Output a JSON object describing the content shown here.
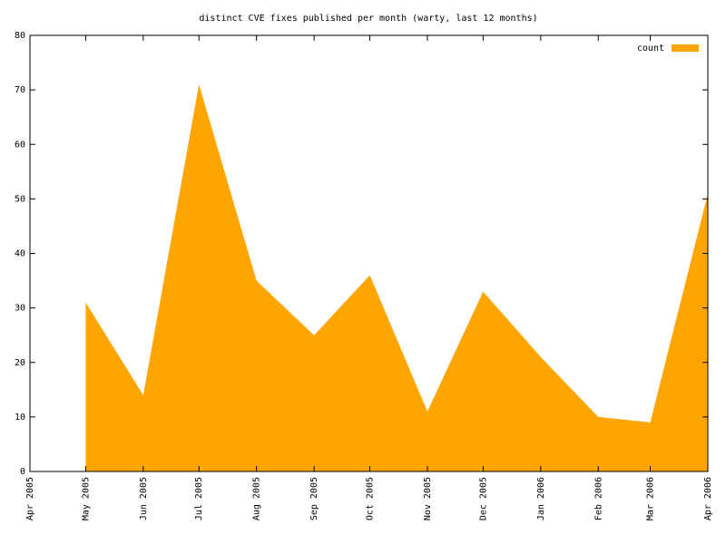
{
  "chart_data": {
    "type": "area",
    "title": "distinct CVE fixes published per month (warty, last 12 months)",
    "x": [
      "2005-05-01",
      "2005-06-01",
      "2005-07-01",
      "2005-08-01",
      "2005-09-01",
      "2005-10-01",
      "2005-11-01",
      "2005-12-01",
      "2006-01-01",
      "2006-02-01",
      "2006-03-01",
      "2006-04-01"
    ],
    "series": [
      {
        "name": "count",
        "color": "#ffa500",
        "values": [
          31,
          14,
          71,
          35,
          25,
          36,
          11,
          33,
          21,
          10,
          9,
          51
        ]
      }
    ],
    "xlim": [
      "2005-04-01",
      "2006-04-01"
    ],
    "xticks": [
      {
        "value": "2005-04-01",
        "label": "Apr 2005"
      },
      {
        "value": "2005-05-01",
        "label": "May 2005"
      },
      {
        "value": "2005-06-01",
        "label": "Jun 2005"
      },
      {
        "value": "2005-07-01",
        "label": "Jul 2005"
      },
      {
        "value": "2005-08-01",
        "label": "Aug 2005"
      },
      {
        "value": "2005-09-01",
        "label": "Sep 2005"
      },
      {
        "value": "2005-10-01",
        "label": "Oct 2005"
      },
      {
        "value": "2005-11-01",
        "label": "Nov 2005"
      },
      {
        "value": "2005-12-01",
        "label": "Dec 2005"
      },
      {
        "value": "2006-01-01",
        "label": "Jan 2006"
      },
      {
        "value": "2006-02-01",
        "label": "Feb 2006"
      },
      {
        "value": "2006-03-01",
        "label": "Mar 2006"
      },
      {
        "value": "2006-04-01",
        "label": "Apr 2006"
      }
    ],
    "ylim": [
      0,
      80
    ],
    "yticks": [
      0,
      10,
      20,
      30,
      40,
      50,
      60,
      70,
      80
    ],
    "legend": "top-right"
  }
}
